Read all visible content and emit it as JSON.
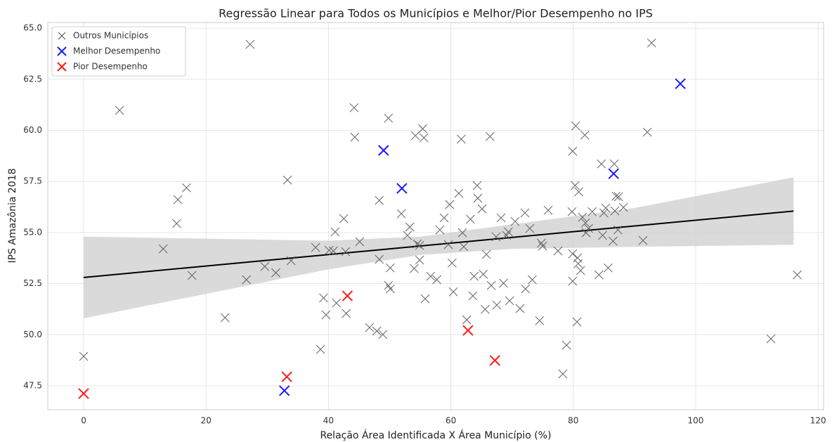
{
  "chart_data": {
    "type": "scatter",
    "title": "Regressão Linear para Todos os Municípios e Melhor/Pior Desempenho no IPS",
    "x_label": "Relação Área Identificada X Área Município (%)",
    "y_label": "IPS Amazônia 2018",
    "xlim": [
      -5.86,
      120.9
    ],
    "ylim": [
      46.33,
      65.28
    ],
    "xticks": [
      0,
      20,
      40,
      60,
      80,
      100,
      120
    ],
    "yticks": [
      47.5,
      {
        "value": 50,
        "label": "50.0"
      },
      52.5,
      {
        "value": 55,
        "label": "55.0"
      },
      57.5,
      {
        "value": 60,
        "label": "60.0"
      },
      62.5,
      {
        "value": 65,
        "label": "65.0"
      }
    ],
    "grid": true,
    "legend": "upper left",
    "series": [
      {
        "name": "Outros Municípios",
        "color": "#555555",
        "x": [
          0,
          5.86,
          13.0,
          15.2,
          15.4,
          16.8,
          17.7,
          23.1,
          26.6,
          27.2,
          29.6,
          31.4,
          33.3,
          33.9,
          37.9,
          38.7,
          39.2,
          39.6,
          40.1,
          40.8,
          41.1,
          41.3,
          42.5,
          42.8,
          42.9,
          44.2,
          44.3,
          45.1,
          46.7,
          47.9,
          48.3,
          48.3,
          48.9,
          49.8,
          49.8,
          50.1,
          50.1,
          51.9,
          52.9,
          53.3,
          54.0,
          54.2,
          54.5,
          54.9,
          54.9,
          55.4,
          55.6,
          55.8,
          56.7,
          57.7,
          58.2,
          58.9,
          59.6,
          59.8,
          60.2,
          60.4,
          61.3,
          61.7,
          61.9,
          62.1,
          62.6,
          63.2,
          63.6,
          63.8,
          64.3,
          64.4,
          65.1,
          65.3,
          65.6,
          65.8,
          66.4,
          66.6,
          67.4,
          67.5,
          68.2,
          68.6,
          69.1,
          69.4,
          69.6,
          70.5,
          71.3,
          72.1,
          72.2,
          72.9,
          73.3,
          74.5,
          74.8,
          75.0,
          75.9,
          77.5,
          78.9,
          78.3,
          79.8,
          79.9,
          79.9,
          79.9,
          80.3,
          80.4,
          80.7,
          80.6,
          80.8,
          80.9,
          81.2,
          81.5,
          81.9,
          82.0,
          82.1,
          82.5,
          83.1,
          84.2,
          84.6,
          84.8,
          85.0,
          85.3,
          85.7,
          86.5,
          86.7,
          86.8,
          87.0,
          87.4,
          87.3,
          88.2,
          91.4,
          92.1,
          92.8,
          112.3,
          116.6
        ],
        "values": [
          48.94,
          60.98,
          54.2,
          55.44,
          56.61,
          57.19,
          52.9,
          50.83,
          52.69,
          64.21,
          53.34,
          53.03,
          57.57,
          53.62,
          54.27,
          49.28,
          51.8,
          50.97,
          54.13,
          54.1,
          55.03,
          51.55,
          55.68,
          54.06,
          51.04,
          61.11,
          59.67,
          54.55,
          50.35,
          50.18,
          53.69,
          56.57,
          50.01,
          60.6,
          52.41,
          52.24,
          53.27,
          55.92,
          54.86,
          55.27,
          53.24,
          59.74,
          54.44,
          53.65,
          54.37,
          60.08,
          59.64,
          51.76,
          52.86,
          52.69,
          55.13,
          55.72,
          54.41,
          56.37,
          53.51,
          52.1,
          56.92,
          59.57,
          54.99,
          54.31,
          50.73,
          55.65,
          51.9,
          52.86,
          57.3,
          56.68,
          56.16,
          52.96,
          51.24,
          53.93,
          59.7,
          52.41,
          54.79,
          51.45,
          55.72,
          52.52,
          54.86,
          55.03,
          51.66,
          55.54,
          51.28,
          55.96,
          52.24,
          55.2,
          52.69,
          50.69,
          54.48,
          54.34,
          56.09,
          54.1,
          49.49,
          48.08,
          56.02,
          58.98,
          52.62,
          53.96,
          57.3,
          60.22,
          53.76,
          50.63,
          53.48,
          56.99,
          53.14,
          55.75,
          59.77,
          55.47,
          54.99,
          55.2,
          56.02,
          52.93,
          58.36,
          54.86,
          55.96,
          56.2,
          53.27,
          54.58,
          58.36,
          56.06,
          56.78,
          56.75,
          55.13,
          56.23,
          54.61,
          59.91,
          64.28,
          49.8,
          52.93
        ]
      },
      {
        "name": "Melhor Desempenho",
        "color": "#1a1aff",
        "x": [
          97.5,
          49.0,
          52.0,
          86.6,
          32.8
        ],
        "values": [
          62.28,
          59.02,
          57.16,
          57.88,
          47.26
        ]
      },
      {
        "name": "Pior Desempenho",
        "color": "#ff1a1a",
        "x": [
          0,
          33.2,
          43.1,
          62.8,
          67.2
        ],
        "values": [
          47.12,
          47.94,
          51.9,
          50.21,
          48.74
        ]
      }
    ],
    "regression": {
      "color": "#000000",
      "x": [
        0,
        116
      ],
      "values": [
        52.8,
        56.05
      ]
    },
    "band": {
      "color": "#d3d3d3",
      "x": [
        0,
        20,
        40,
        55,
        70,
        90,
        116
      ],
      "upper": [
        54.8,
        54.7,
        54.6,
        54.8,
        55.4,
        56.2,
        57.7
      ],
      "lower": [
        50.8,
        52.0,
        53.2,
        53.9,
        54.2,
        54.3,
        54.4
      ]
    }
  }
}
